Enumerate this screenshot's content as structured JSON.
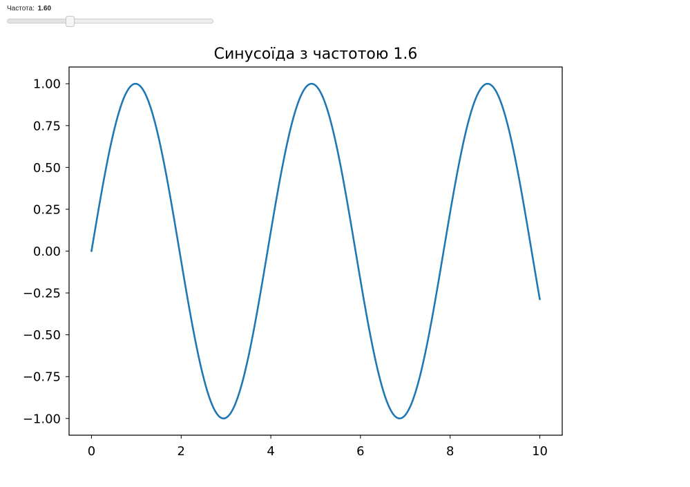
{
  "slider": {
    "label": "Частота:",
    "value_text": "1.60",
    "value": 1.6,
    "min": 0.1,
    "max": 5.0
  },
  "chart_data": {
    "type": "line",
    "title": "Синусоїда з частотою 1.6",
    "xlabel": "",
    "ylabel": "",
    "function": "sin(frequency * x)",
    "frequency": 1.6,
    "x_range": [
      0,
      10
    ],
    "xlim": [
      -0.5,
      10.5
    ],
    "ylim": [
      -1.1,
      1.1
    ],
    "x_ticks": [
      0,
      2,
      4,
      6,
      8,
      10
    ],
    "x_tick_labels": [
      "0",
      "2",
      "4",
      "6",
      "8",
      "10"
    ],
    "y_ticks": [
      1.0,
      0.75,
      0.5,
      0.25,
      0.0,
      -0.25,
      -0.5,
      -0.75,
      -1.0
    ],
    "y_tick_labels": [
      "1.00",
      "0.75",
      "0.50",
      "0.25",
      "0.00",
      "−0.25",
      "−0.50",
      "−0.75",
      "−1.00"
    ],
    "series": [
      {
        "color": "#1f77b4",
        "x": [
          0,
          0.25,
          0.5,
          0.75,
          1,
          1.25,
          1.5,
          1.75,
          2,
          2.25,
          2.5,
          2.75,
          3,
          3.25,
          3.5,
          3.75,
          4,
          4.25,
          4.5,
          4.75,
          5,
          5.25,
          5.5,
          5.75,
          6,
          6.25,
          6.5,
          6.75,
          7,
          7.25,
          7.5,
          7.75,
          8,
          8.25,
          8.5,
          8.75,
          9,
          9.25,
          9.5,
          9.75,
          10
        ],
        "y": [
          0,
          0.389,
          0.717,
          0.932,
          1.0,
          0.909,
          0.675,
          0.335,
          -0.058,
          -0.443,
          -0.757,
          -0.952,
          -0.996,
          -0.883,
          -0.631,
          -0.279,
          0.117,
          0.494,
          0.794,
          0.968,
          0.989,
          0.854,
          0.585,
          0.223,
          -0.174,
          -0.544,
          -0.827,
          -0.982,
          -0.979,
          -0.823,
          -0.537,
          -0.166,
          0.231,
          0.592,
          0.859,
          0.991,
          0.966,
          0.788,
          0.487,
          0.109,
          -0.288
        ]
      }
    ],
    "grid": false,
    "legend": "none"
  }
}
